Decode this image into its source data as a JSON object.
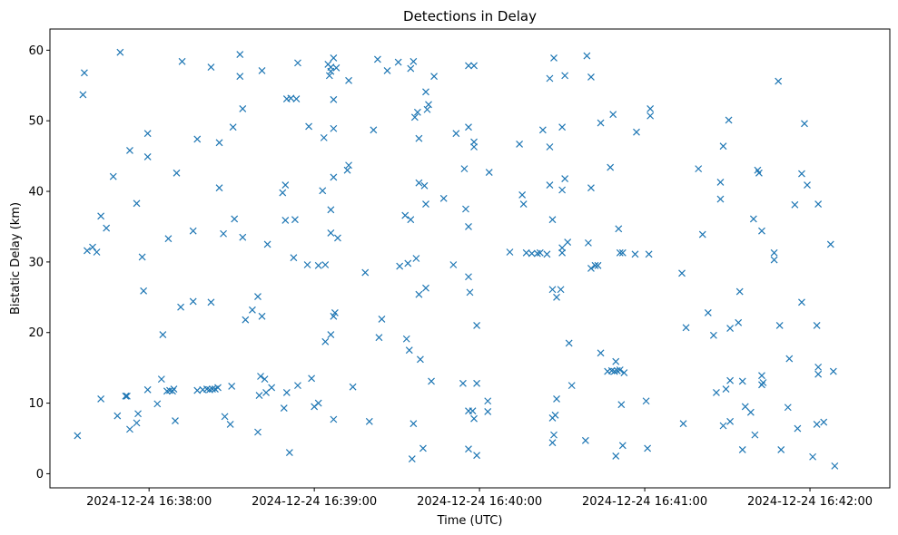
{
  "chart_data": {
    "type": "scatter",
    "title": "Detections in Delay",
    "xlabel": "Time (UTC)",
    "ylabel": "Bistatic Delay (km)",
    "marker": "x",
    "color": "#1f77b4",
    "x_units": "seconds after 2024-12-24 16:37:00 UTC",
    "xlim": [
      -6,
      299
    ],
    "ylim": [
      -2,
      63
    ],
    "grid": false,
    "x_ticks": [
      {
        "value": 30,
        "label": "2024-12-24 16:38:00"
      },
      {
        "value": 90,
        "label": "2024-12-24 16:39:00"
      },
      {
        "value": 150,
        "label": "2024-12-24 16:40:00"
      },
      {
        "value": 210,
        "label": "2024-12-24 16:41:00"
      },
      {
        "value": 270,
        "label": "2024-12-24 16:42:00"
      }
    ],
    "y_ticks": [
      {
        "value": 0,
        "label": "0"
      },
      {
        "value": 10,
        "label": "10"
      },
      {
        "value": 20,
        "label": "20"
      },
      {
        "value": 30,
        "label": "30"
      },
      {
        "value": 40,
        "label": "40"
      },
      {
        "value": 50,
        "label": "50"
      },
      {
        "value": 60,
        "label": "60"
      }
    ],
    "points": [
      [
        4.0,
        5.4
      ],
      [
        6.0,
        53.7
      ],
      [
        6.5,
        56.8
      ],
      [
        7.5,
        31.6
      ],
      [
        9.5,
        32.1
      ],
      [
        11.0,
        31.4
      ],
      [
        12.5,
        10.6
      ],
      [
        12.5,
        36.5
      ],
      [
        14.5,
        34.8
      ],
      [
        17.0,
        42.1
      ],
      [
        18.5,
        8.2
      ],
      [
        19.5,
        59.7
      ],
      [
        21.5,
        11.0
      ],
      [
        22.0,
        11.0
      ],
      [
        23.0,
        45.8
      ],
      [
        23.0,
        6.3
      ],
      [
        25.5,
        7.2
      ],
      [
        25.5,
        38.3
      ],
      [
        26.0,
        8.5
      ],
      [
        27.5,
        30.7
      ],
      [
        28.0,
        25.9
      ],
      [
        29.5,
        11.9
      ],
      [
        29.5,
        48.2
      ],
      [
        29.5,
        44.9
      ],
      [
        33.0,
        9.9
      ],
      [
        34.5,
        13.4
      ],
      [
        35.0,
        19.7
      ],
      [
        36.5,
        11.7
      ],
      [
        37.0,
        33.3
      ],
      [
        37.5,
        11.8
      ],
      [
        38.5,
        11.7
      ],
      [
        39.0,
        12.0
      ],
      [
        39.5,
        7.5
      ],
      [
        40.0,
        42.6
      ],
      [
        41.5,
        23.6
      ],
      [
        42.0,
        58.4
      ],
      [
        46.0,
        34.4
      ],
      [
        46.0,
        24.4
      ],
      [
        47.5,
        11.8
      ],
      [
        47.5,
        47.4
      ],
      [
        49.5,
        11.9
      ],
      [
        51.0,
        12.0
      ],
      [
        52.0,
        11.9
      ],
      [
        52.5,
        24.3
      ],
      [
        52.5,
        57.6
      ],
      [
        53.0,
        12.0
      ],
      [
        54.0,
        12.0
      ],
      [
        55.0,
        12.2
      ],
      [
        55.5,
        40.5
      ],
      [
        55.5,
        46.9
      ],
      [
        57.0,
        34.0
      ],
      [
        57.5,
        8.1
      ],
      [
        59.5,
        7.0
      ],
      [
        60.0,
        12.4
      ],
      [
        60.5,
        49.1
      ],
      [
        61.0,
        36.1
      ],
      [
        63.0,
        59.4
      ],
      [
        63.0,
        56.3
      ],
      [
        64.0,
        51.7
      ],
      [
        64.0,
        33.5
      ],
      [
        65.0,
        21.8
      ],
      [
        67.5,
        23.2
      ],
      [
        69.5,
        5.9
      ],
      [
        69.5,
        25.1
      ],
      [
        70.0,
        11.1
      ],
      [
        70.5,
        13.8
      ],
      [
        71.0,
        57.1
      ],
      [
        71.0,
        22.3
      ],
      [
        72.0,
        13.4
      ],
      [
        72.5,
        11.5
      ],
      [
        73.0,
        32.5
      ],
      [
        74.5,
        12.2
      ],
      [
        78.5,
        39.8
      ],
      [
        79.0,
        9.3
      ],
      [
        79.5,
        40.9
      ],
      [
        79.5,
        35.9
      ],
      [
        80.0,
        11.5
      ],
      [
        80.0,
        53.1
      ],
      [
        81.0,
        3.0
      ],
      [
        81.5,
        53.2
      ],
      [
        82.5,
        30.6
      ],
      [
        83.0,
        36.0
      ],
      [
        83.5,
        53.1
      ],
      [
        84.0,
        58.2
      ],
      [
        84.0,
        12.5
      ],
      [
        87.5,
        29.6
      ],
      [
        88.0,
        49.2
      ],
      [
        89.0,
        13.5
      ],
      [
        90.0,
        9.5
      ],
      [
        91.5,
        29.5
      ],
      [
        91.5,
        10.0
      ],
      [
        93.0,
        40.1
      ],
      [
        93.5,
        47.6
      ],
      [
        94.0,
        18.7
      ],
      [
        94.0,
        29.6
      ],
      [
        95.0,
        58.0
      ],
      [
        95.5,
        56.4
      ],
      [
        96.0,
        57.6
      ],
      [
        96.0,
        34.1
      ],
      [
        96.0,
        37.4
      ],
      [
        96.0,
        19.7
      ],
      [
        96.0,
        57.0
      ],
      [
        97.0,
        58.9
      ],
      [
        97.0,
        53.0
      ],
      [
        97.0,
        48.9
      ],
      [
        97.0,
        42.0
      ],
      [
        97.0,
        22.3
      ],
      [
        97.0,
        7.7
      ],
      [
        97.5,
        22.8
      ],
      [
        98.0,
        57.5
      ],
      [
        98.5,
        33.4
      ],
      [
        102.0,
        43.0
      ],
      [
        102.5,
        55.7
      ],
      [
        102.5,
        43.7
      ],
      [
        104.0,
        12.3
      ],
      [
        108.5,
        28.5
      ],
      [
        110.0,
        7.4
      ],
      [
        111.5,
        48.7
      ],
      [
        113.0,
        58.7
      ],
      [
        113.5,
        19.3
      ],
      [
        114.5,
        21.9
      ],
      [
        116.5,
        57.1
      ],
      [
        120.5,
        58.3
      ],
      [
        121.0,
        29.4
      ],
      [
        123.0,
        36.6
      ],
      [
        123.5,
        19.1
      ],
      [
        124.0,
        29.8
      ],
      [
        124.5,
        17.5
      ],
      [
        125.0,
        36.0
      ],
      [
        125.0,
        57.4
      ],
      [
        125.5,
        2.1
      ],
      [
        126.0,
        58.4
      ],
      [
        126.0,
        7.1
      ],
      [
        126.5,
        50.5
      ],
      [
        127.0,
        30.5
      ],
      [
        127.5,
        51.2
      ],
      [
        128.0,
        47.5
      ],
      [
        128.0,
        41.2
      ],
      [
        128.0,
        25.4
      ],
      [
        128.5,
        16.2
      ],
      [
        129.5,
        3.6
      ],
      [
        130.0,
        40.8
      ],
      [
        130.5,
        54.1
      ],
      [
        130.5,
        38.2
      ],
      [
        130.5,
        26.3
      ],
      [
        131.0,
        51.6
      ],
      [
        131.5,
        52.3
      ],
      [
        132.5,
        13.1
      ],
      [
        133.5,
        56.3
      ],
      [
        137.0,
        39.0
      ],
      [
        140.5,
        29.6
      ],
      [
        141.5,
        48.2
      ],
      [
        144.0,
        12.8
      ],
      [
        144.5,
        43.2
      ],
      [
        145.0,
        37.5
      ],
      [
        146.0,
        57.8
      ],
      [
        146.0,
        49.1
      ],
      [
        146.0,
        35.0
      ],
      [
        146.0,
        27.9
      ],
      [
        146.0,
        3.5
      ],
      [
        146.0,
        8.9
      ],
      [
        146.5,
        25.7
      ],
      [
        147.5,
        8.9
      ],
      [
        148.0,
        57.8
      ],
      [
        148.0,
        47.0
      ],
      [
        148.0,
        46.3
      ],
      [
        148.0,
        7.8
      ],
      [
        149.0,
        21.0
      ],
      [
        149.0,
        12.8
      ],
      [
        149.0,
        2.6
      ],
      [
        153.0,
        10.3
      ],
      [
        153.0,
        8.8
      ],
      [
        153.5,
        42.7
      ],
      [
        161.0,
        31.4
      ],
      [
        164.5,
        46.7
      ],
      [
        165.5,
        39.5
      ],
      [
        166.0,
        38.2
      ],
      [
        167.0,
        31.3
      ],
      [
        169.0,
        31.2
      ],
      [
        171.0,
        31.2
      ],
      [
        172.0,
        31.3
      ],
      [
        173.0,
        48.7
      ],
      [
        174.5,
        31.1
      ],
      [
        175.5,
        56.0
      ],
      [
        175.5,
        46.3
      ],
      [
        175.5,
        40.9
      ],
      [
        176.5,
        4.4
      ],
      [
        176.5,
        26.1
      ],
      [
        176.5,
        36.0
      ],
      [
        176.5,
        7.9
      ],
      [
        177.0,
        5.5
      ],
      [
        177.0,
        58.9
      ],
      [
        177.5,
        8.3
      ],
      [
        178.0,
        10.6
      ],
      [
        178.0,
        25.0
      ],
      [
        179.5,
        26.1
      ],
      [
        180.0,
        32.0
      ],
      [
        180.0,
        31.3
      ],
      [
        180.0,
        49.1
      ],
      [
        180.0,
        40.2
      ],
      [
        181.0,
        56.4
      ],
      [
        181.0,
        41.8
      ],
      [
        182.0,
        32.8
      ],
      [
        182.5,
        18.5
      ],
      [
        183.5,
        12.5
      ],
      [
        188.5,
        4.7
      ],
      [
        189.0,
        59.2
      ],
      [
        189.5,
        32.7
      ],
      [
        190.5,
        56.2
      ],
      [
        190.5,
        40.5
      ],
      [
        190.5,
        29.1
      ],
      [
        192.0,
        29.5
      ],
      [
        193.0,
        29.5
      ],
      [
        194.0,
        49.7
      ],
      [
        194.0,
        17.1
      ],
      [
        196.5,
        14.5
      ],
      [
        197.5,
        43.4
      ],
      [
        198.0,
        14.6
      ],
      [
        198.5,
        50.9
      ],
      [
        199.0,
        14.5
      ],
      [
        199.5,
        15.9
      ],
      [
        199.5,
        2.5
      ],
      [
        200.0,
        14.6
      ],
      [
        200.5,
        34.7
      ],
      [
        201.0,
        31.3
      ],
      [
        201.0,
        14.7
      ],
      [
        201.5,
        9.8
      ],
      [
        202.0,
        31.3
      ],
      [
        202.0,
        4.0
      ],
      [
        202.5,
        14.3
      ],
      [
        206.5,
        31.1
      ],
      [
        207.0,
        48.4
      ],
      [
        210.5,
        10.3
      ],
      [
        211.0,
        3.6
      ],
      [
        211.5,
        31.1
      ],
      [
        212.0,
        51.7
      ],
      [
        212.0,
        50.7
      ],
      [
        223.5,
        28.4
      ],
      [
        224.0,
        7.1
      ],
      [
        225.0,
        20.7
      ],
      [
        229.5,
        43.2
      ],
      [
        231.0,
        33.9
      ],
      [
        233.0,
        22.8
      ],
      [
        235.0,
        19.6
      ],
      [
        236.0,
        11.5
      ],
      [
        237.5,
        38.9
      ],
      [
        237.5,
        41.3
      ],
      [
        238.5,
        46.4
      ],
      [
        238.5,
        6.8
      ],
      [
        239.5,
        12.0
      ],
      [
        240.5,
        50.1
      ],
      [
        241.0,
        13.2
      ],
      [
        241.0,
        7.4
      ],
      [
        241.0,
        20.6
      ],
      [
        244.0,
        21.4
      ],
      [
        244.5,
        25.8
      ],
      [
        245.5,
        13.1
      ],
      [
        245.5,
        3.4
      ],
      [
        246.5,
        9.5
      ],
      [
        248.5,
        8.7
      ],
      [
        249.5,
        36.1
      ],
      [
        250.0,
        5.5
      ],
      [
        251.0,
        43.0
      ],
      [
        251.5,
        42.6
      ],
      [
        252.5,
        13.9
      ],
      [
        252.5,
        34.4
      ],
      [
        252.5,
        12.6
      ],
      [
        253.0,
        12.9
      ],
      [
        257.0,
        31.3
      ],
      [
        257.0,
        30.3
      ],
      [
        258.5,
        55.6
      ],
      [
        259.0,
        21.0
      ],
      [
        259.5,
        3.4
      ],
      [
        262.0,
        9.4
      ],
      [
        262.5,
        16.3
      ],
      [
        264.5,
        38.1
      ],
      [
        265.5,
        6.4
      ],
      [
        267.0,
        42.5
      ],
      [
        267.0,
        24.3
      ],
      [
        268.0,
        49.6
      ],
      [
        269.0,
        40.9
      ],
      [
        271.0,
        2.4
      ],
      [
        272.5,
        7.0
      ],
      [
        272.5,
        21.0
      ],
      [
        273.0,
        38.2
      ],
      [
        273.0,
        15.1
      ],
      [
        273.0,
        14.1
      ],
      [
        275.0,
        7.3
      ],
      [
        277.5,
        32.5
      ],
      [
        278.5,
        14.5
      ],
      [
        279.0,
        1.1
      ]
    ]
  }
}
